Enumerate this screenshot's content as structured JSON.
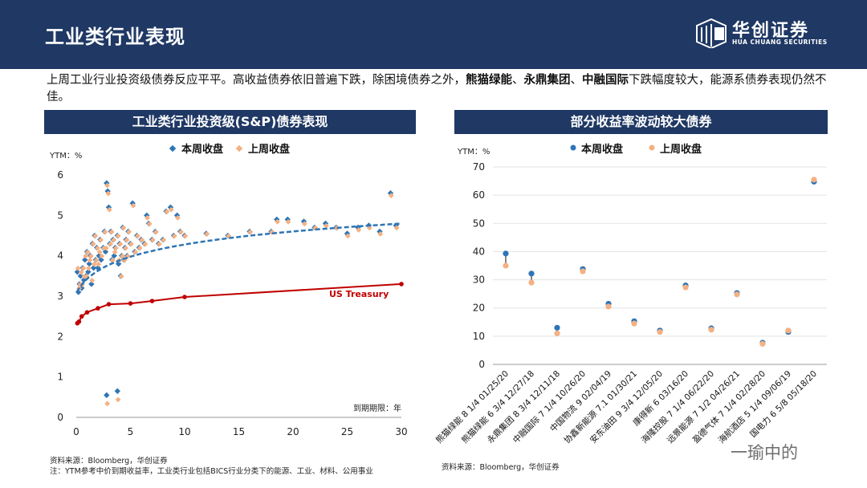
{
  "header": {
    "title": "工业类行业表现",
    "logo_cn": "华创证券",
    "logo_en": "HUA CHUANG SECURITIES"
  },
  "summary": {
    "part1": "上周工业行业投资级债券反应平平。高收益债券依旧普遍下跌，除困境债券之外，",
    "bold1": "熊猫绿能",
    "sep1": "、",
    "bold2": "永鼎集团",
    "sep2": "、",
    "bold3": "中融国际",
    "part2": "下跌幅度较大，能源系债券表现仍然不佳。"
  },
  "left_panel": {
    "title": "工业类行业投资级(S&P)债券表现",
    "source": "资料来源：Bloomberg，华创证券",
    "note": "注：YTM参考中价到期收益率，工业类行业包括BICS行业分类下的能源、工业、材料、公用事业"
  },
  "right_panel": {
    "title": "部分收益率波动较大债券",
    "source": "资料来源：Bloomberg，华创证券"
  },
  "watermark": "一瑜中的",
  "colors": {
    "header_bg": "#1f3864",
    "this_week": "#2e75b6",
    "last_week": "#f4b183",
    "treasury": "#c00000",
    "fit": "#2e75b6"
  },
  "chart_data": [
    {
      "type": "scatter",
      "ylabel": "YTM：%",
      "xlabel": "到期期限：年",
      "xlim": [
        0,
        30
      ],
      "ylim": [
        0,
        6
      ],
      "xticks": [
        0,
        5,
        10,
        15,
        20,
        25,
        30
      ],
      "yticks": [
        0,
        1,
        2,
        3,
        4,
        5,
        6
      ],
      "legend_position": "top",
      "series": [
        {
          "name": "本周收盘",
          "points": [
            [
              0.1,
              3.6
            ],
            [
              0.2,
              3.1
            ],
            [
              0.3,
              3.3
            ],
            [
              0.4,
              3.5
            ],
            [
              0.5,
              3.2
            ],
            [
              0.6,
              3.7
            ],
            [
              0.7,
              3.4
            ],
            [
              0.8,
              3.9
            ],
            [
              0.9,
              3.5
            ],
            [
              1.0,
              4.1
            ],
            [
              1.1,
              3.6
            ],
            [
              1.2,
              3.8
            ],
            [
              1.3,
              4.0
            ],
            [
              1.4,
              3.3
            ],
            [
              1.5,
              4.3
            ],
            [
              1.6,
              3.7
            ],
            [
              1.7,
              4.5
            ],
            [
              1.8,
              3.9
            ],
            [
              1.9,
              4.2
            ],
            [
              2.0,
              3.7
            ],
            [
              2.1,
              4.0
            ],
            [
              2.2,
              4.4
            ],
            [
              2.3,
              3.9
            ],
            [
              2.5,
              4.2
            ],
            [
              2.6,
              4.6
            ],
            [
              2.7,
              4.1
            ],
            [
              2.8,
              5.8
            ],
            [
              2.9,
              5.6
            ],
            [
              3.0,
              5.2
            ],
            [
              3.1,
              4.3
            ],
            [
              3.2,
              4.6
            ],
            [
              3.3,
              3.9
            ],
            [
              3.4,
              4.4
            ],
            [
              3.5,
              4.0
            ],
            [
              3.6,
              4.2
            ],
            [
              3.8,
              4.5
            ],
            [
              3.9,
              3.8
            ],
            [
              4.0,
              4.3
            ],
            [
              4.1,
              3.5
            ],
            [
              4.2,
              4.0
            ],
            [
              4.3,
              4.7
            ],
            [
              4.4,
              3.9
            ],
            [
              4.5,
              4.2
            ],
            [
              4.6,
              4.4
            ],
            [
              4.7,
              4.0
            ],
            [
              4.8,
              4.6
            ],
            [
              5.0,
              4.3
            ],
            [
              5.2,
              5.3
            ],
            [
              5.4,
              4.1
            ],
            [
              5.6,
              4.5
            ],
            [
              5.8,
              4.2
            ],
            [
              6.0,
              4.4
            ],
            [
              6.3,
              4.3
            ],
            [
              6.5,
              5.0
            ],
            [
              6.7,
              4.8
            ],
            [
              7.0,
              4.4
            ],
            [
              7.3,
              4.6
            ],
            [
              7.6,
              4.3
            ],
            [
              8.0,
              4.4
            ],
            [
              8.3,
              5.1
            ],
            [
              8.7,
              5.2
            ],
            [
              9.0,
              4.5
            ],
            [
              9.3,
              5.0
            ],
            [
              9.6,
              4.6
            ],
            [
              10,
              4.5
            ],
            [
              12,
              4.55
            ],
            [
              14,
              4.5
            ],
            [
              16,
              4.6
            ],
            [
              18,
              4.6
            ],
            [
              18.5,
              4.9
            ],
            [
              19.5,
              4.9
            ],
            [
              21,
              4.85
            ],
            [
              22,
              4.7
            ],
            [
              23,
              4.8
            ],
            [
              24,
              4.7
            ],
            [
              25,
              4.55
            ],
            [
              26,
              4.7
            ],
            [
              27,
              4.75
            ],
            [
              28,
              4.6
            ],
            [
              29,
              5.55
            ],
            [
              29.5,
              4.75
            ],
            [
              2.8,
              0.55
            ],
            [
              3.8,
              0.65
            ]
          ]
        },
        {
          "name": "上周收盘",
          "points": [
            [
              0.1,
              3.7
            ],
            [
              0.2,
              3.2
            ],
            [
              0.3,
              3.3
            ],
            [
              0.4,
              3.6
            ],
            [
              0.5,
              3.3
            ],
            [
              0.6,
              3.7
            ],
            [
              0.7,
              3.5
            ],
            [
              0.8,
              4.0
            ],
            [
              0.9,
              3.5
            ],
            [
              1.0,
              4.1
            ],
            [
              1.1,
              3.7
            ],
            [
              1.2,
              3.9
            ],
            [
              1.3,
              4.0
            ],
            [
              1.4,
              3.4
            ],
            [
              1.5,
              4.3
            ],
            [
              1.6,
              3.8
            ],
            [
              1.7,
              4.5
            ],
            [
              1.8,
              3.9
            ],
            [
              1.9,
              4.2
            ],
            [
              2.0,
              3.8
            ],
            [
              2.1,
              4.1
            ],
            [
              2.2,
              4.4
            ],
            [
              2.3,
              4.0
            ],
            [
              2.5,
              4.2
            ],
            [
              2.6,
              4.6
            ],
            [
              2.7,
              4.2
            ],
            [
              2.8,
              5.75
            ],
            [
              2.9,
              5.55
            ],
            [
              3.0,
              5.15
            ],
            [
              3.1,
              4.3
            ],
            [
              3.2,
              4.6
            ],
            [
              3.3,
              3.9
            ],
            [
              3.4,
              4.4
            ],
            [
              3.5,
              4.1
            ],
            [
              3.6,
              4.2
            ],
            [
              3.8,
              4.5
            ],
            [
              3.9,
              3.9
            ],
            [
              4.0,
              4.3
            ],
            [
              4.1,
              3.5
            ],
            [
              4.2,
              4.0
            ],
            [
              4.3,
              4.7
            ],
            [
              4.4,
              3.9
            ],
            [
              4.5,
              4.2
            ],
            [
              4.6,
              4.4
            ],
            [
              4.7,
              4.0
            ],
            [
              4.8,
              4.6
            ],
            [
              5.0,
              4.3
            ],
            [
              5.2,
              5.25
            ],
            [
              5.4,
              4.1
            ],
            [
              5.6,
              4.5
            ],
            [
              5.8,
              4.2
            ],
            [
              6.0,
              4.4
            ],
            [
              6.3,
              4.3
            ],
            [
              6.5,
              4.95
            ],
            [
              6.7,
              4.8
            ],
            [
              7.0,
              4.4
            ],
            [
              7.3,
              4.6
            ],
            [
              7.6,
              4.3
            ],
            [
              8.0,
              4.4
            ],
            [
              8.3,
              5.1
            ],
            [
              8.7,
              5.15
            ],
            [
              9.0,
              4.5
            ],
            [
              9.3,
              4.95
            ],
            [
              9.6,
              4.6
            ],
            [
              10,
              4.5
            ],
            [
              12,
              4.55
            ],
            [
              14,
              4.5
            ],
            [
              16,
              4.6
            ],
            [
              18,
              4.6
            ],
            [
              18.5,
              4.85
            ],
            [
              19.5,
              4.85
            ],
            [
              21,
              4.8
            ],
            [
              22,
              4.7
            ],
            [
              23,
              4.75
            ],
            [
              24,
              4.7
            ],
            [
              25,
              4.5
            ],
            [
              26,
              4.65
            ],
            [
              27,
              4.7
            ],
            [
              28,
              4.55
            ],
            [
              29,
              5.5
            ],
            [
              29.5,
              4.7
            ],
            [
              2.8,
              0.35
            ],
            [
              3.8,
              0.45
            ]
          ]
        },
        {
          "name": "US Treasury",
          "points": [
            [
              0.1,
              2.33
            ],
            [
              0.25,
              2.37
            ],
            [
              0.5,
              2.5
            ],
            [
              1,
              2.6
            ],
            [
              2,
              2.7
            ],
            [
              3,
              2.8
            ],
            [
              5,
              2.82
            ],
            [
              7,
              2.88
            ],
            [
              10,
              2.98
            ],
            [
              30,
              3.3
            ]
          ]
        }
      ]
    },
    {
      "type": "dot_pair",
      "ylabel": "YTM：%",
      "ylim": [
        0,
        70
      ],
      "yticks": [
        0,
        10,
        20,
        30,
        40,
        50,
        60,
        70
      ],
      "legend_position": "top",
      "categories": [
        "熊猫绿能 8 1/4 01/25/20",
        "熊猫绿能 6 3/4 12/27/18",
        "永鼎集团 8 3/4 12/11/18",
        "中融国际 7 1/4 10/26/20",
        "中国物流 9 02/04/19",
        "协鑫新能源 7.1 01/30/21",
        "安东油田 9 3/4 12/05/20",
        "康得新 6 03/16/20",
        "海隆控股 7 1/4 06/22/20",
        "远景能源 7 1/2 04/26/21",
        "盈德气体 7 1/4 02/28/20",
        "海航酒店 5 1/4 09/06/19",
        "国电力 6 5/8 05/18/20"
      ],
      "series": [
        {
          "name": "本周收盘",
          "values": [
            39.3,
            32.2,
            13.0,
            33.8,
            21.5,
            15.3,
            12.0,
            28.0,
            12.8,
            25.3,
            7.7,
            11.5,
            64.8
          ]
        },
        {
          "name": "上周收盘",
          "values": [
            35.0,
            29.0,
            11.0,
            33.0,
            20.5,
            14.5,
            11.5,
            27.3,
            12.3,
            24.8,
            7.3,
            12.0,
            65.5
          ]
        }
      ]
    }
  ]
}
